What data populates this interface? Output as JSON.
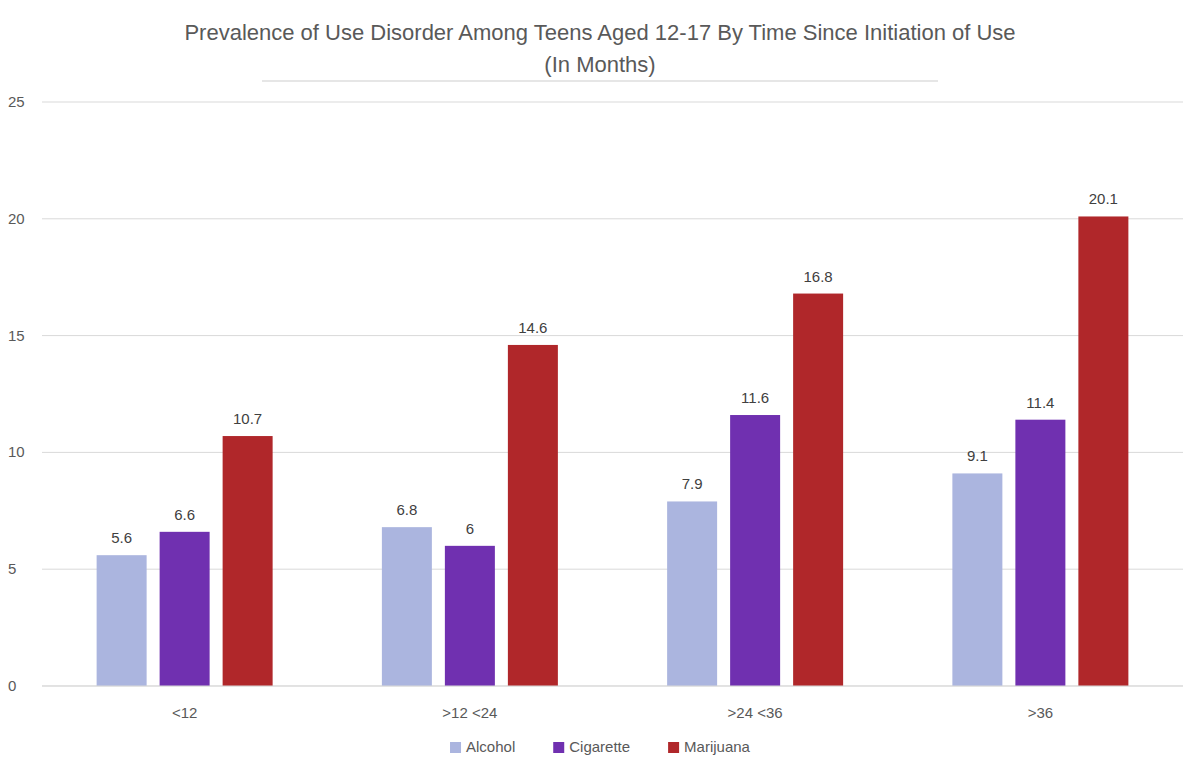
{
  "chart_data": {
    "type": "bar",
    "title": "Prevalence of Use Disorder Among Teens Aged 12-17 By Time Since Initiation of Use",
    "subtitle": "(In Months)",
    "categories": [
      "<12",
      ">12 <24",
      ">24 <36",
      ">36"
    ],
    "series": [
      {
        "name": "Alcohol",
        "color": "#abb5df",
        "values": [
          5.6,
          6.8,
          7.9,
          9.1
        ]
      },
      {
        "name": "Cigarette",
        "color": "#7030b0",
        "values": [
          6.6,
          6,
          11.6,
          11.4
        ]
      },
      {
        "name": "Marijuana",
        "color": "#b0272a",
        "values": [
          10.7,
          14.6,
          16.8,
          20.1
        ]
      }
    ],
    "ylim": [
      0,
      25
    ],
    "yticks": [
      0,
      5,
      10,
      15,
      20,
      25
    ],
    "grid": true,
    "legend": "bottom",
    "data_labels": true
  }
}
